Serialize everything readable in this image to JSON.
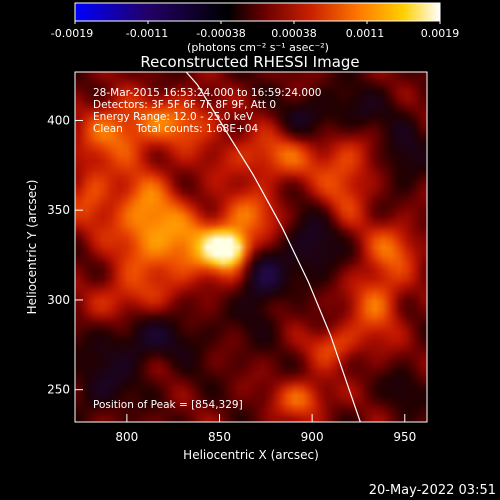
{
  "colorbar": {
    "ticks": [
      "-0.0019",
      "-0.0011",
      "-0.00038",
      "0.00038",
      "0.0011",
      "0.0019"
    ],
    "unit_label": "(photons cm⁻² s⁻¹ asec⁻²)",
    "colors": [
      "#0000ff",
      "#220066",
      "#000000",
      "#6a0000",
      "#cc2200",
      "#ff7a00",
      "#ffd000",
      "#ffffff"
    ]
  },
  "annotations": {
    "time_range": "28-Mar-2015 16:53:24.000 to 16:59:24.000",
    "detectors": "Detectors: 3F 5F 6F 7F 8F 9F, Att 0",
    "energy": "Energy Range: 12.0 - 25.0 keV",
    "clean": "Clean    Total counts: 1.68E+04",
    "peak": "Position of Peak = [854,329]"
  },
  "footer_date": "20-May-2022 03:51",
  "chart_data": {
    "type": "heatmap",
    "title": "Reconstructed RHESSI Image",
    "xlabel": "Heliocentric X (arcsec)",
    "ylabel": "Heliocentric Y (arcsec)",
    "xlim": [
      772,
      962
    ],
    "ylim": [
      232,
      427
    ],
    "xticks": [
      800,
      850,
      900,
      950
    ],
    "yticks": [
      250,
      300,
      350,
      400
    ],
    "colorbar_range": [
      -0.0019,
      0.0019
    ],
    "peak": {
      "x": 854,
      "y": 329
    },
    "limb": [
      [
        926,
        232
      ],
      [
        920,
        250
      ],
      [
        910,
        280
      ],
      [
        898,
        310
      ],
      [
        884,
        340
      ],
      [
        868,
        370
      ],
      [
        850,
        400
      ],
      [
        838,
        420
      ],
      [
        832,
        427
      ]
    ],
    "sources": [
      {
        "x": 854,
        "y": 329,
        "sx": 7,
        "sy": 6,
        "a": 1.0
      },
      {
        "x": 840,
        "y": 328,
        "sx": 22,
        "sy": 14,
        "a": 0.45
      },
      {
        "x": 810,
        "y": 348,
        "sx": 14,
        "sy": 18,
        "a": 0.45
      },
      {
        "x": 795,
        "y": 395,
        "sx": 14,
        "sy": 12,
        "a": 0.42
      },
      {
        "x": 830,
        "y": 400,
        "sx": 14,
        "sy": 10,
        "a": 0.38
      },
      {
        "x": 880,
        "y": 380,
        "sx": 22,
        "sy": 10,
        "a": 0.34
      },
      {
        "x": 868,
        "y": 348,
        "sx": 12,
        "sy": 10,
        "a": 0.3
      },
      {
        "x": 918,
        "y": 365,
        "sx": 10,
        "sy": 18,
        "a": 0.32
      },
      {
        "x": 935,
        "y": 300,
        "sx": 10,
        "sy": 16,
        "a": 0.38
      },
      {
        "x": 945,
        "y": 330,
        "sx": 10,
        "sy": 10,
        "a": 0.32
      },
      {
        "x": 895,
        "y": 245,
        "sx": 10,
        "sy": 8,
        "a": 0.4
      },
      {
        "x": 912,
        "y": 275,
        "sx": 10,
        "sy": 8,
        "a": 0.32
      },
      {
        "x": 800,
        "y": 300,
        "sx": 14,
        "sy": 10,
        "a": 0.32
      },
      {
        "x": 880,
        "y": 300,
        "sx": 10,
        "sy": 8,
        "a": 0.25
      },
      {
        "x": 780,
        "y": 360,
        "sx": 8,
        "sy": 14,
        "a": 0.3
      },
      {
        "x": 820,
        "y": 265,
        "sx": 10,
        "sy": 8,
        "a": 0.18
      },
      {
        "x": 874,
        "y": 307,
        "sx": 9,
        "sy": 14,
        "a": -0.55
      },
      {
        "x": 812,
        "y": 275,
        "sx": 20,
        "sy": 14,
        "a": -0.32
      },
      {
        "x": 900,
        "y": 330,
        "sx": 12,
        "sy": 14,
        "a": -0.32
      },
      {
        "x": 920,
        "y": 405,
        "sx": 16,
        "sy": 10,
        "a": -0.22
      },
      {
        "x": 950,
        "y": 380,
        "sx": 8,
        "sy": 12,
        "a": -0.25
      },
      {
        "x": 785,
        "y": 250,
        "sx": 10,
        "sy": 10,
        "a": -0.22
      },
      {
        "x": 950,
        "y": 250,
        "sx": 8,
        "sy": 8,
        "a": -0.18
      },
      {
        "x": 895,
        "y": 400,
        "sx": 8,
        "sy": 8,
        "a": -0.18
      }
    ]
  }
}
